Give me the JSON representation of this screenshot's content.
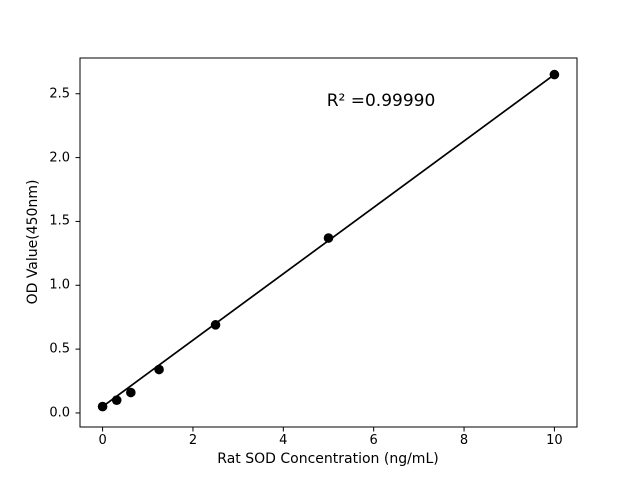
{
  "chart_data": {
    "type": "scatter",
    "title": "",
    "xlabel": "Rat SOD Concentration (ng/mL)",
    "ylabel": "OD Value(450nm)",
    "annotation": "R² =0.99990",
    "x": [
      0,
      0.3125,
      0.625,
      1.25,
      2.5,
      5,
      10
    ],
    "y": [
      0.05,
      0.1,
      0.16,
      0.34,
      0.69,
      1.37,
      2.65
    ],
    "fit_line": {
      "x": [
        0,
        10
      ],
      "y": [
        0.05,
        2.65
      ]
    },
    "xlim": [
      -0.5,
      10.5
    ],
    "ylim": [
      -0.11,
      2.78
    ],
    "xticks": [
      "0",
      "2",
      "4",
      "6",
      "8",
      "10"
    ],
    "yticks": [
      "0.0",
      "0.5",
      "1.0",
      "1.5",
      "2.0",
      "2.5"
    ],
    "grid": false,
    "legend": null,
    "colors": {
      "marker": "#000000",
      "line": "#000000",
      "axis": "#000000",
      "text": "#000000",
      "background": "#ffffff"
    }
  }
}
